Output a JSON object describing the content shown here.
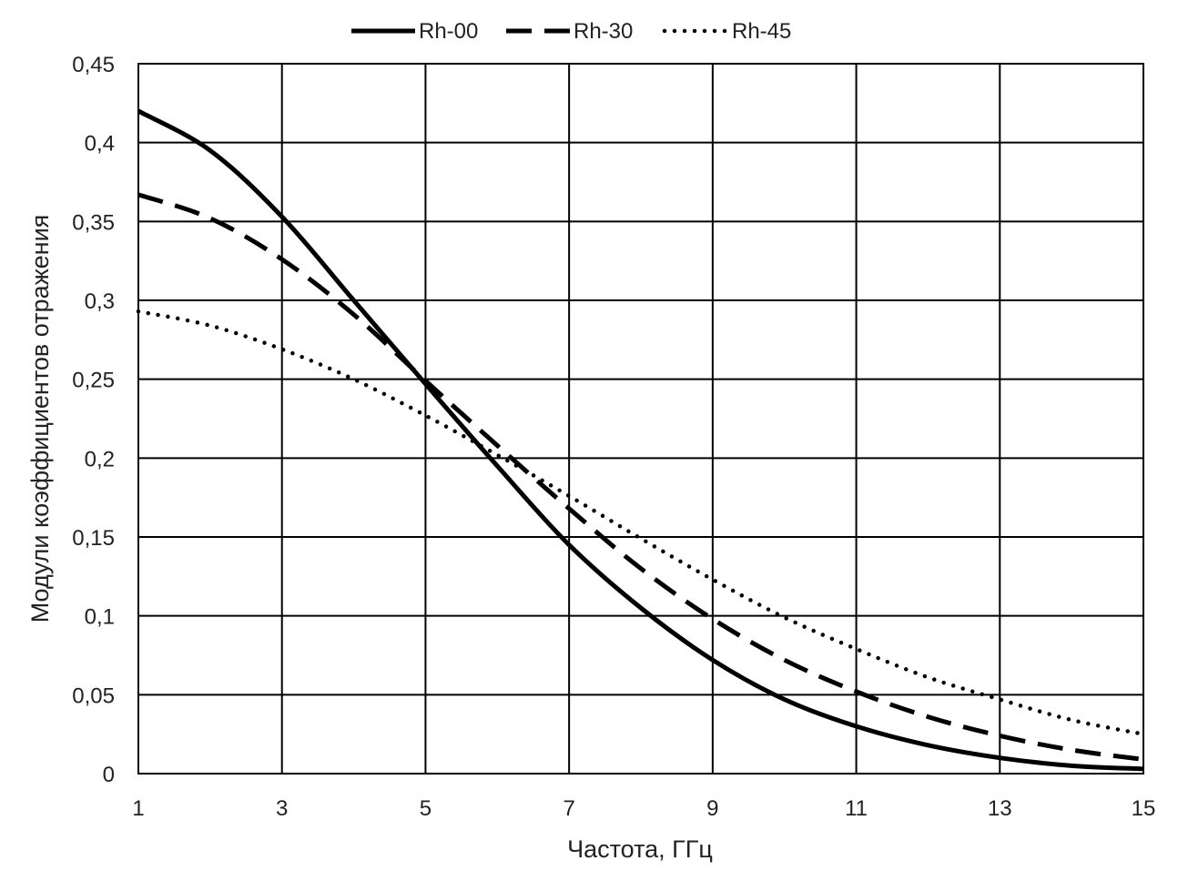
{
  "chart_data": {
    "type": "line",
    "title": "",
    "xlabel": "Частота, ГГц",
    "ylabel": "Модули коэффициентов отражения",
    "xlim": [
      1,
      15
    ],
    "ylim": [
      0,
      0.45
    ],
    "x_ticks": [
      1,
      3,
      5,
      7,
      9,
      11,
      13,
      15
    ],
    "x_tick_labels": [
      "1",
      "3",
      "5",
      "7",
      "9",
      "11",
      "13",
      "15"
    ],
    "y_ticks": [
      0,
      0.05,
      0.1,
      0.15,
      0.2,
      0.25,
      0.3,
      0.35,
      0.4,
      0.45
    ],
    "y_tick_labels": [
      "0",
      "0,05",
      "0,1",
      "0,15",
      "0,2",
      "0,25",
      "0,3",
      "0,35",
      "0,4",
      "0,45"
    ],
    "grid": true,
    "legend_position": "top",
    "x": [
      1,
      2,
      3,
      4,
      5,
      6,
      7,
      8,
      9,
      10,
      11,
      12,
      13,
      14,
      15
    ],
    "series": [
      {
        "name": "Rh-00",
        "style": "solid",
        "color": "#000000",
        "values": [
          0.42,
          0.395,
          0.353,
          0.3,
          0.247,
          0.195,
          0.145,
          0.105,
          0.072,
          0.047,
          0.03,
          0.018,
          0.01,
          0.005,
          0.003
        ]
      },
      {
        "name": "Rh-30",
        "style": "dashed",
        "color": "#000000",
        "values": [
          0.367,
          0.352,
          0.326,
          0.291,
          0.249,
          0.208,
          0.168,
          0.13,
          0.098,
          0.072,
          0.052,
          0.036,
          0.024,
          0.015,
          0.009
        ]
      },
      {
        "name": "Rh-45",
        "style": "dotted",
        "color": "#000000",
        "values": [
          0.293,
          0.284,
          0.269,
          0.25,
          0.227,
          0.202,
          0.176,
          0.149,
          0.123,
          0.099,
          0.079,
          0.061,
          0.047,
          0.034,
          0.025
        ]
      }
    ]
  }
}
